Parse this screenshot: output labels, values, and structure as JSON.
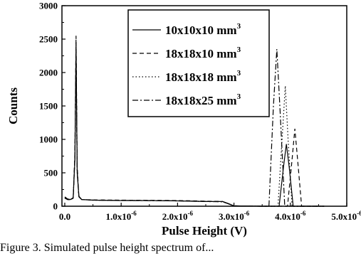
{
  "chart_data": {
    "type": "line",
    "xlabel": "Pulse Height (V)",
    "ylabel": "Counts",
    "xlim": [
      -5e-08,
      5e-06
    ],
    "ylim": [
      0,
      3000
    ],
    "x_ticks": [
      {
        "value": 0.0,
        "label": "0.0"
      },
      {
        "value": 1e-06,
        "label": "1.0x10",
        "exp": "-6"
      },
      {
        "value": 2e-06,
        "label": "2.0x10",
        "exp": "-6"
      },
      {
        "value": 3e-06,
        "label": "3.0x10",
        "exp": "-6"
      },
      {
        "value": 4e-06,
        "label": "4.0x10",
        "exp": "-6"
      },
      {
        "value": 5e-06,
        "label": "5.0x10",
        "exp": "-6"
      }
    ],
    "y_ticks": [
      0,
      500,
      1000,
      1500,
      2000,
      2500,
      3000
    ],
    "grid": false,
    "legend_position": "top-center",
    "series": [
      {
        "name": "10x10x10 mm",
        "unit_exp": "3",
        "dash": "solid",
        "x": [
          0.0,
          5e-08,
          1e-07,
          1.5e-07,
          1.8e-07,
          2e-07,
          2.2e-07,
          2.5e-07,
          3e-07,
          5e-07,
          1e-06,
          1.5e-06,
          2e-06,
          2.5e-06,
          2.8e-06,
          2.9e-06,
          3e-06,
          3.5e-06,
          3.8e-06,
          3.88e-06,
          3.93e-06,
          3.98e-06,
          4.05e-06,
          4.2e-06,
          4.6e-06
        ],
        "y": [
          140,
          110,
          100,
          130,
          700,
          2450,
          500,
          150,
          100,
          90,
          85,
          85,
          80,
          70,
          70,
          40,
          5,
          0,
          0,
          600,
          930,
          580,
          0,
          0,
          0
        ]
      },
      {
        "name": "18x18x10 mm",
        "unit_exp": "3",
        "dash": "dashed",
        "x": [
          0.0,
          5e-08,
          1e-07,
          1.5e-07,
          1.8e-07,
          2e-07,
          2.2e-07,
          2.5e-07,
          3e-07,
          5e-07,
          1e-06,
          1.5e-06,
          2e-06,
          2.5e-06,
          2.8e-06,
          2.9e-06,
          3e-06,
          3.5e-06,
          3.95e-06,
          4.03e-06,
          4.08e-06,
          4.13e-06,
          4.2e-06,
          4.6e-06
        ],
        "y": [
          120,
          100,
          95,
          120,
          800,
          2550,
          600,
          140,
          100,
          95,
          90,
          88,
          85,
          75,
          70,
          35,
          5,
          0,
          0,
          700,
          1160,
          680,
          0,
          0
        ]
      },
      {
        "name": "18x18x18 mm",
        "unit_exp": "3",
        "dash": "dotted",
        "x": [
          0.0,
          5e-08,
          1e-07,
          1.5e-07,
          1.8e-07,
          2e-07,
          2.2e-07,
          2.5e-07,
          3e-07,
          5e-07,
          1e-06,
          1.5e-06,
          2e-06,
          2.5e-06,
          2.8e-06,
          2.9e-06,
          3e-06,
          3.5e-06,
          3.78e-06,
          3.86e-06,
          3.91e-06,
          3.96e-06,
          4.03e-06,
          4.6e-06
        ],
        "y": [
          130,
          105,
          100,
          125,
          750,
          2300,
          550,
          145,
          100,
          92,
          88,
          85,
          82,
          72,
          68,
          38,
          5,
          0,
          0,
          1100,
          1800,
          1000,
          0,
          0
        ]
      },
      {
        "name": "18x18x25 mm",
        "unit_exp": "3",
        "dash": "dash-dot",
        "x": [
          0.0,
          5e-08,
          1e-07,
          1.5e-07,
          1.8e-07,
          2e-07,
          2.2e-07,
          2.5e-07,
          3e-07,
          5e-07,
          1e-06,
          1.5e-06,
          2e-06,
          2.5e-06,
          2.8e-06,
          2.9e-06,
          3e-06,
          3.5e-06,
          3.62e-06,
          3.7e-06,
          3.76e-06,
          3.82e-06,
          3.9e-06,
          4.6e-06
        ],
        "y": [
          125,
          100,
          98,
          120,
          720,
          2200,
          520,
          140,
          100,
          90,
          86,
          84,
          80,
          70,
          66,
          36,
          5,
          0,
          0,
          1500,
          2350,
          1400,
          0,
          0
        ]
      }
    ]
  },
  "caption": "Figure 3.  Simulated pulse height spectrum of..."
}
